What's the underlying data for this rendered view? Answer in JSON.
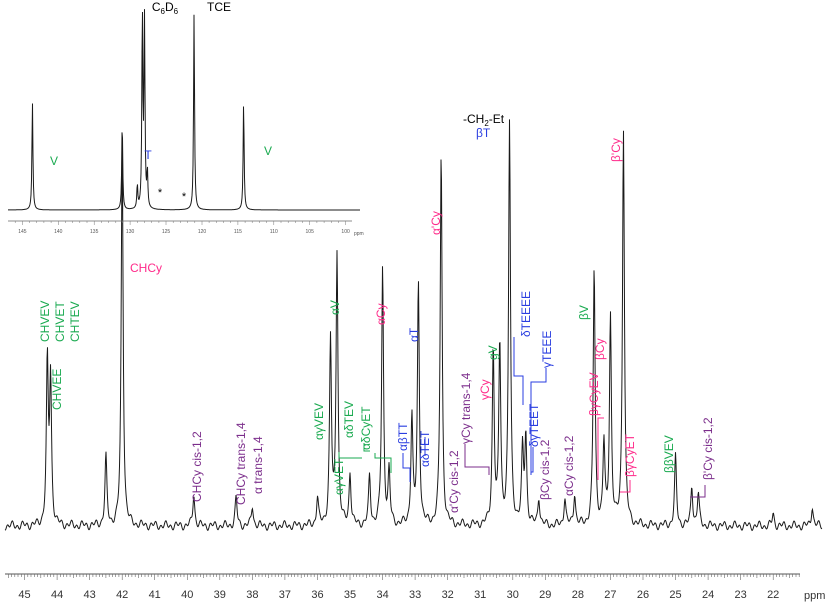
{
  "colors": {
    "trace": "#1a1a1a",
    "green": "#1aaa50",
    "blue": "#2a3ee0",
    "pink": "#ff2a8a",
    "purple": "#7b2d8b",
    "black": "#000000"
  },
  "chart_data": {
    "type": "line",
    "title": "",
    "xlabel": "ppm",
    "ylabel": "",
    "xlim": [
      45.6,
      20.5
    ],
    "x_ticks": [
      "45",
      "44",
      "43",
      "42",
      "41",
      "40",
      "39",
      "38",
      "37",
      "36",
      "35",
      "34",
      "33",
      "32",
      "31",
      "30",
      "29",
      "28",
      "27",
      "26",
      "25",
      "24",
      "23",
      "22"
    ],
    "x_unit_label": "ppm",
    "grid": false,
    "main_peaks": [
      {
        "ppm": 44.3,
        "height": 0.4
      },
      {
        "ppm": 44.2,
        "height": 0.36
      },
      {
        "ppm": 42.5,
        "height": 0.17
      },
      {
        "ppm": 42.0,
        "height": 0.95
      },
      {
        "ppm": 39.8,
        "height": 0.08
      },
      {
        "ppm": 38.5,
        "height": 0.07
      },
      {
        "ppm": 38.0,
        "height": 0.05
      },
      {
        "ppm": 36.0,
        "height": 0.07
      },
      {
        "ppm": 35.6,
        "height": 0.46
      },
      {
        "ppm": 35.4,
        "height": 0.68
      },
      {
        "ppm": 35.0,
        "height": 0.13
      },
      {
        "ppm": 34.4,
        "height": 0.12
      },
      {
        "ppm": 34.0,
        "height": 0.64
      },
      {
        "ppm": 33.8,
        "height": 0.13
      },
      {
        "ppm": 33.1,
        "height": 0.27
      },
      {
        "ppm": 32.9,
        "height": 0.6
      },
      {
        "ppm": 32.2,
        "height": 0.93
      },
      {
        "ppm": 30.6,
        "height": 0.44
      },
      {
        "ppm": 30.4,
        "height": 0.45
      },
      {
        "ppm": 30.1,
        "height": 1.0
      },
      {
        "ppm": 29.7,
        "height": 0.18
      },
      {
        "ppm": 29.6,
        "height": 0.22
      },
      {
        "ppm": 29.2,
        "height": 0.07
      },
      {
        "ppm": 28.4,
        "height": 0.07
      },
      {
        "ppm": 28.1,
        "height": 0.08
      },
      {
        "ppm": 27.5,
        "height": 0.64
      },
      {
        "ppm": 27.2,
        "height": 0.2
      },
      {
        "ppm": 27.0,
        "height": 0.52
      },
      {
        "ppm": 26.6,
        "height": 0.99
      },
      {
        "ppm": 25.0,
        "height": 0.17
      },
      {
        "ppm": 24.5,
        "height": 0.1
      },
      {
        "ppm": 24.3,
        "height": 0.08
      },
      {
        "ppm": 22.0,
        "height": 0.03
      },
      {
        "ppm": 20.8,
        "height": 0.05
      }
    ],
    "inset": {
      "xlabel": "ppm",
      "xlim": [
        147,
        98
      ],
      "x_ticks": [
        "145",
        "140",
        "135",
        "130",
        "125",
        "120",
        "115",
        "110",
        "105",
        "100"
      ],
      "peaks": [
        {
          "ppm": 143.6,
          "height": 0.55
        },
        {
          "ppm": 131.1,
          "height": 0.45
        },
        {
          "ppm": 129.0,
          "height": 0.12
        },
        {
          "ppm": 128.3,
          "height": 1.0
        },
        {
          "ppm": 128.0,
          "height": 1.0
        },
        {
          "ppm": 127.6,
          "height": 0.18
        },
        {
          "ppm": 121.1,
          "height": 1.0
        },
        {
          "ppm": 114.2,
          "height": 0.55
        }
      ],
      "labels": [
        {
          "text": "V",
          "color": "green"
        },
        {
          "text": "T",
          "color": "blue"
        },
        {
          "text": "*",
          "color": "black"
        },
        {
          "text": "*",
          "color": "black"
        },
        {
          "text": "TCE",
          "color": "black"
        },
        {
          "text": "V",
          "color": "green"
        }
      ],
      "solvent_label": {
        "main": "C",
        "sub1": "6",
        "mid": "D",
        "sub2": "6"
      }
    },
    "annotations": [
      {
        "text": "CHVEV",
        "color": "green"
      },
      {
        "text": "CHVET",
        "color": "green"
      },
      {
        "text": "CHTEV",
        "color": "green"
      },
      {
        "text": "CHVEE",
        "color": "green"
      },
      {
        "text": "CHCy",
        "color": "pink"
      },
      {
        "text": "CHCy cis-1,2",
        "color": "purple"
      },
      {
        "text": "CHCy trans-1,4",
        "color": "purple"
      },
      {
        "text": "α trans-1,4",
        "color": "purple"
      },
      {
        "text": "αγVEV",
        "color": "green"
      },
      {
        "text": "αγVET",
        "color": "green"
      },
      {
        "text": "αδTEV",
        "color": "green"
      },
      {
        "text": "αδCyET",
        "color": "green"
      },
      {
        "text": "αV",
        "color": "green"
      },
      {
        "text": "αCy",
        "color": "pink"
      },
      {
        "text": "αβTT",
        "color": "blue"
      },
      {
        "text": "αT",
        "color": "blue"
      },
      {
        "text": "αδTET",
        "color": "blue"
      },
      {
        "text": "α'Cy",
        "color": "pink"
      },
      {
        "text": "α'Cy cis-1,2",
        "color": "purple"
      },
      {
        "text": "γCy trans-1,4",
        "color": "purple"
      },
      {
        "text": "γCy",
        "color": "pink"
      },
      {
        "text": "gV",
        "color": "green"
      },
      {
        "text": "βT",
        "color": "blue"
      },
      {
        "text": "δTEEEE",
        "color": "blue"
      },
      {
        "text": "γTEEE",
        "color": "blue"
      },
      {
        "text": "δγTEET",
        "color": "blue"
      },
      {
        "text": "βCy cis-1,2",
        "color": "purple"
      },
      {
        "text": "αCy cis-1,2",
        "color": "purple"
      },
      {
        "text": "βV",
        "color": "green"
      },
      {
        "text": "βCy",
        "color": "pink"
      },
      {
        "text": "βγCyEV",
        "color": "pink"
      },
      {
        "text": "βγCyET",
        "color": "pink"
      },
      {
        "text": "β'Cy",
        "color": "pink"
      },
      {
        "text": "ββVEV",
        "color": "green"
      },
      {
        "text": "β'Cy cis-1,2",
        "color": "purple"
      }
    ],
    "ch2et_label": {
      "pre": "-CH",
      "sub": "2",
      "post": "-Et"
    }
  }
}
